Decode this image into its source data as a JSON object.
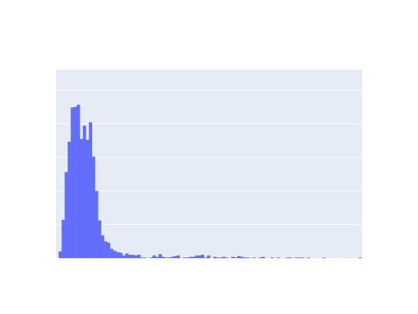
{
  "chart_data": {
    "type": "bar",
    "title": "",
    "xlabel": "",
    "ylabel": "",
    "grid": true,
    "legend": "none",
    "bar_color": "#636efa",
    "plot_bg_color": "#e5ecf6",
    "grid_color": "#ffffff",
    "ylim": [
      0,
      280
    ],
    "bins": 100,
    "values": [
      10,
      57,
      128,
      173,
      224,
      225,
      228,
      177,
      197,
      176,
      202,
      151,
      100,
      56,
      34,
      25,
      23,
      14,
      11,
      9,
      8,
      4,
      7,
      5,
      5,
      4,
      5,
      1,
      1,
      0,
      1,
      4,
      2,
      6,
      2,
      1,
      1,
      2,
      3,
      4,
      0,
      1,
      1,
      2,
      2,
      4,
      4,
      5,
      1,
      4,
      0,
      2,
      1,
      1,
      2,
      1,
      0,
      2,
      1,
      3,
      2,
      1,
      1,
      0,
      1,
      0,
      1,
      2,
      0,
      0,
      1,
      0,
      1,
      0,
      0,
      1,
      1,
      0,
      1,
      1,
      1,
      0,
      1,
      0,
      0,
      0,
      0,
      1,
      0,
      0,
      0,
      0,
      0,
      0,
      0,
      0,
      0,
      0,
      0,
      1
    ]
  }
}
